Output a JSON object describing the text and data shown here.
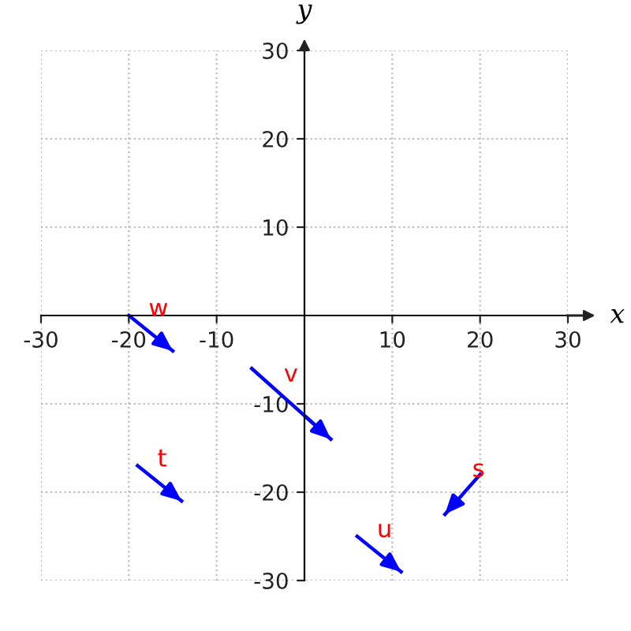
{
  "chart_data": {
    "type": "line",
    "xlabel": "x",
    "ylabel": "y",
    "xlim": [
      -30,
      30
    ],
    "ylim": [
      -30,
      30
    ],
    "xticks": [
      -30,
      -20,
      -10,
      10,
      20,
      30
    ],
    "yticks": [
      -30,
      -20,
      -10,
      10,
      20,
      30
    ],
    "grid": true,
    "marker": "none",
    "line_style": "solid",
    "series": [
      {
        "name": "w",
        "color": "#0000ff",
        "x": [
          -20,
          -15
        ],
        "values": [
          0,
          -4
        ]
      },
      {
        "name": "v",
        "color": "#0000ff",
        "x": [
          -6,
          3
        ],
        "values": [
          -6,
          -14
        ]
      },
      {
        "name": "t",
        "color": "#0000ff",
        "x": [
          -19,
          -14
        ],
        "values": [
          -17,
          -21
        ]
      },
      {
        "name": "s",
        "color": "#0000ff",
        "x": [
          20,
          16
        ],
        "values": [
          -18,
          -22.5
        ]
      },
      {
        "name": "u",
        "color": "#0000ff",
        "x": [
          6,
          11
        ],
        "values": [
          -25,
          -29
        ]
      }
    ]
  }
}
